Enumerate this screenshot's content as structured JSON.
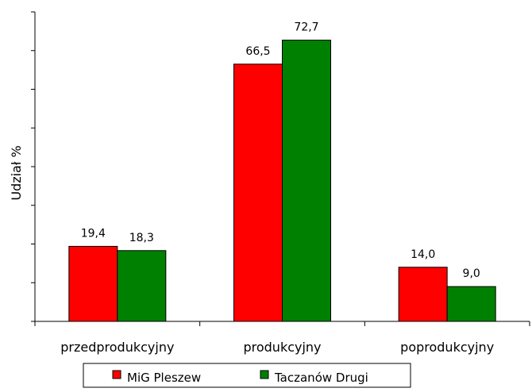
{
  "chart_data": {
    "type": "bar",
    "categories": [
      "przedprodukcyjny",
      "produkcyjny",
      "poprodukcyjny"
    ],
    "series": [
      {
        "name": "MiG Pleszew",
        "values": [
          19.4,
          66.5,
          14.0
        ],
        "labels": [
          "19,4",
          "66,5",
          "14,0"
        ],
        "color": "#ff0000"
      },
      {
        "name": "Taczanów Drugi",
        "values": [
          18.3,
          72.7,
          9.0
        ],
        "labels": [
          "18,3",
          "72,7",
          "9,0"
        ],
        "color": "#008000"
      }
    ],
    "ylabel": "Udział %",
    "ylim": [
      0,
      80
    ],
    "y_tick_step": 10,
    "grid": false,
    "legend": "bottom"
  }
}
